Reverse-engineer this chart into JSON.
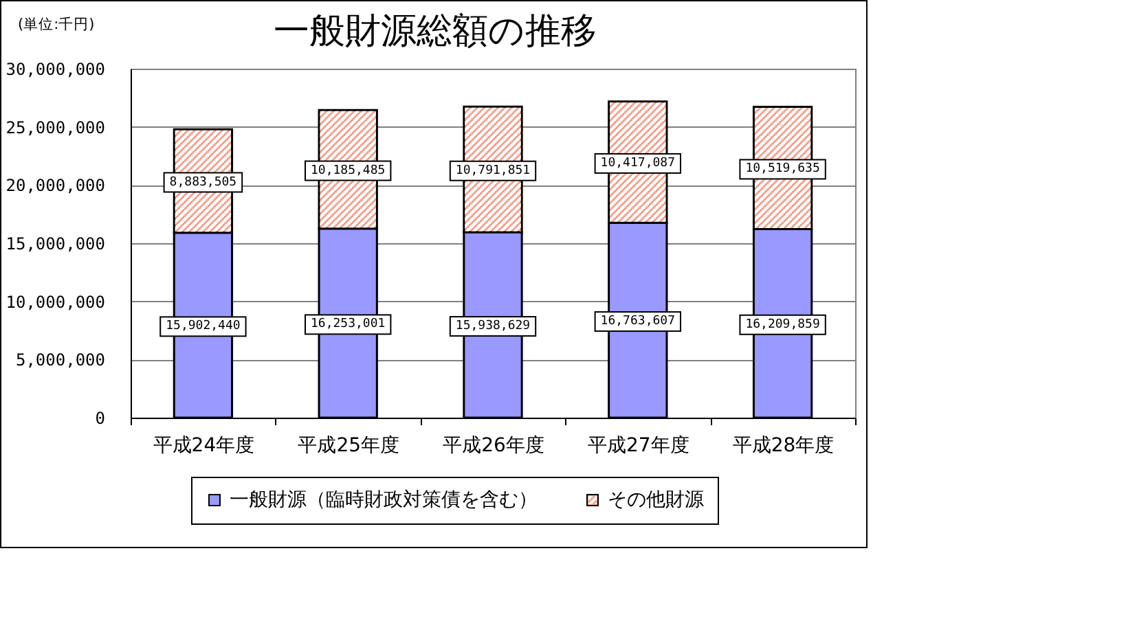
{
  "chart_data": {
    "type": "bar",
    "title": "一般財源総額の推移",
    "annotations": [
      "(単位:千円)"
    ],
    "categories": [
      "平成24年度",
      "平成25年度",
      "平成26年度",
      "平成27年度",
      "平成28年度"
    ],
    "stacked": true,
    "series": [
      {
        "name": "一般財源（臨時財政対策債を含む）",
        "color": "#9999ff",
        "values": [
          15902440,
          16253001,
          15938629,
          16763607,
          16209859
        ],
        "value_labels": [
          "15,902,440",
          "16,253,001",
          "15,938,629",
          "16,763,607",
          "16,209,859"
        ]
      },
      {
        "name": "その他財源",
        "color": "#f4a08c",
        "values": [
          8883505,
          10185485,
          10791851,
          10417087,
          10519635
        ],
        "value_labels": [
          "8,883,505",
          "10,185,485",
          "10,791,851",
          "10,417,087",
          "10,519,635"
        ]
      }
    ],
    "ylim": [
      0,
      30000000
    ],
    "yticks": [
      0,
      {
        "value": 5000000,
        "label": "5,000,000"
      },
      {
        "value": 10000000,
        "label": "10,000,000"
      },
      {
        "value": 15000000,
        "label": "15,000,000"
      },
      {
        "value": 20000000,
        "label": "20,000,000"
      },
      {
        "value": 25000000,
        "label": "25,000,000"
      },
      {
        "value": 30000000,
        "label": "30,000,000"
      }
    ],
    "grid": "y",
    "legend": "bottom"
  }
}
